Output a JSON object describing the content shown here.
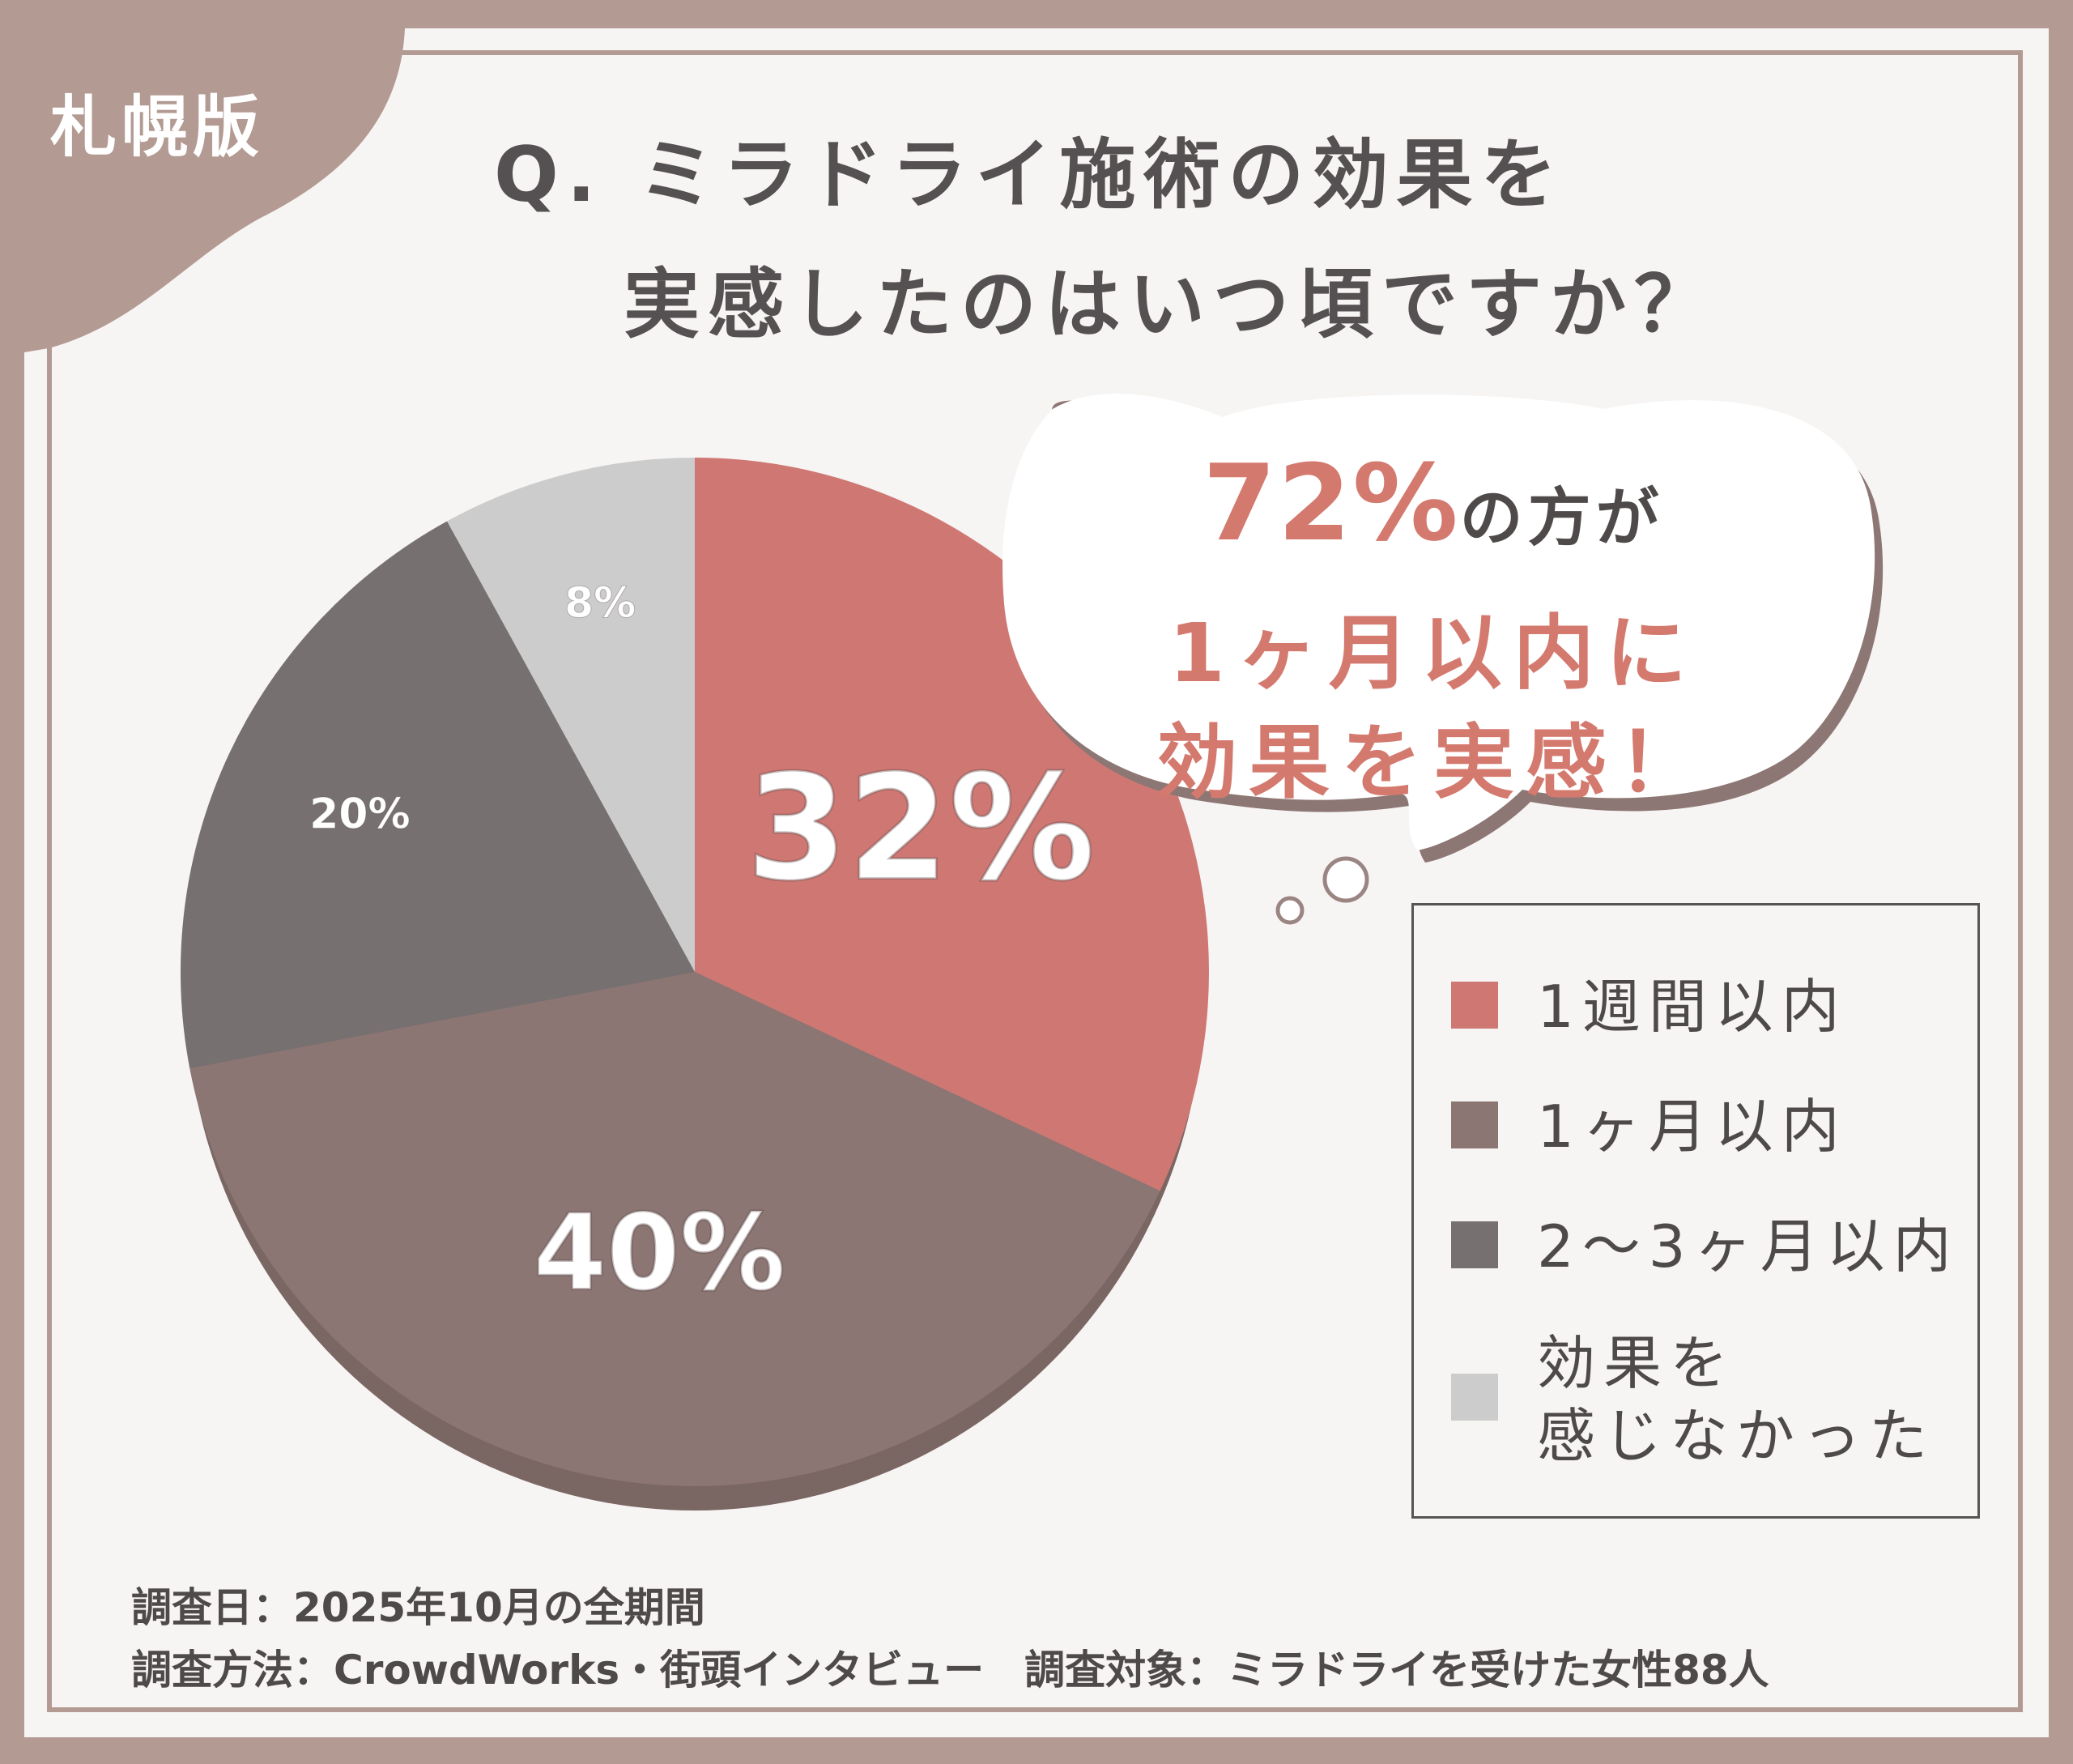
{
  "corner_label": "札幌版",
  "title_line1": "Q. ミラドライ施術の効果を",
  "title_line2": "実感したのはいつ頃ですか？",
  "callout": {
    "highlight": "72%",
    "line1_rest": "の方が",
    "line2": "1ヶ月以内に",
    "line3": "効果を実感！"
  },
  "chart_data": {
    "type": "pie",
    "categories": [
      "1週間以内",
      "1ヶ月以内",
      "2〜3ヶ月以内",
      "効果を感じなかった"
    ],
    "values": [
      32,
      40,
      20,
      8
    ],
    "value_labels": [
      "32%",
      "40%",
      "20%",
      "8%"
    ],
    "colors": [
      "#cf7873",
      "#8b7674",
      "#767070",
      "#cccccc"
    ],
    "start": "12 o'clock, clockwise",
    "legend_position": "right"
  },
  "legend": [
    {
      "label": "1週間以内",
      "color": "#cf7873"
    },
    {
      "label": "1ヶ月以内",
      "color": "#8b7674"
    },
    {
      "label": "2〜3ヶ月以内",
      "color": "#767070"
    },
    {
      "label": "効果を\n感じなかった",
      "color": "#cccccc"
    }
  ],
  "footer": {
    "line1": "調査日：2025年10月の全期間",
    "line2": "調査方法：CrowdWorks・街頭インタビュー　調査対象：ミラドライを受けた女性88人"
  }
}
